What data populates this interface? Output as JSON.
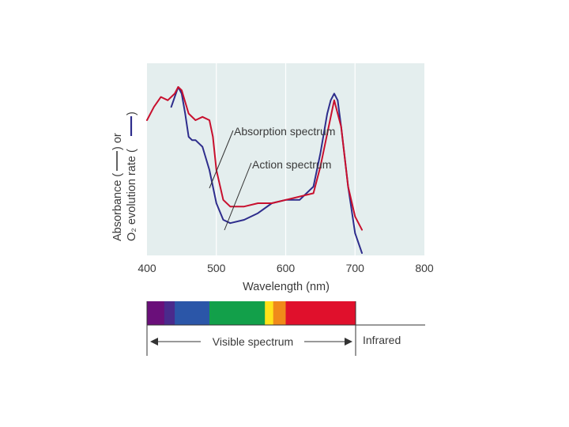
{
  "chart_data": {
    "type": "line",
    "title": "",
    "xlabel": "Wavelength (nm)",
    "ylabel_line1": "Absorbance (",
    "ylabel_line1_end": ") or",
    "ylabel_line2": "O₂ evolution rate (",
    "ylabel_line2_end": ")",
    "xlim": [
      400,
      800
    ],
    "ylim": [
      0,
      1
    ],
    "xticks": [
      "400",
      "500",
      "600",
      "700",
      "800"
    ],
    "grid": "vertical",
    "series": [
      {
        "name": "Absorption spectrum",
        "color": "#2e2d8c",
        "x": [
          435,
          440,
          445,
          450,
          455,
          460,
          465,
          470,
          480,
          490,
          500,
          510,
          520,
          540,
          560,
          580,
          600,
          620,
          640,
          650,
          660,
          665,
          670,
          675,
          680,
          690,
          700,
          710
        ],
        "y": [
          0.44,
          0.47,
          0.5,
          0.48,
          0.42,
          0.35,
          0.34,
          0.34,
          0.32,
          0.25,
          0.15,
          0.1,
          0.09,
          0.1,
          0.12,
          0.15,
          0.16,
          0.16,
          0.2,
          0.3,
          0.42,
          0.46,
          0.48,
          0.46,
          0.38,
          0.2,
          0.06,
          0.0
        ]
      },
      {
        "name": "Action spectrum",
        "color": "#c8102e",
        "x": [
          400,
          410,
          420,
          430,
          440,
          445,
          450,
          460,
          470,
          480,
          490,
          495,
          500,
          510,
          520,
          540,
          560,
          580,
          600,
          620,
          640,
          650,
          660,
          670,
          680,
          690,
          700,
          710
        ],
        "y": [
          0.4,
          0.44,
          0.47,
          0.46,
          0.48,
          0.5,
          0.49,
          0.42,
          0.4,
          0.41,
          0.4,
          0.35,
          0.25,
          0.16,
          0.14,
          0.14,
          0.15,
          0.15,
          0.16,
          0.17,
          0.18,
          0.26,
          0.36,
          0.46,
          0.38,
          0.2,
          0.11,
          0.07
        ]
      }
    ],
    "annotations": [
      "Absorption spectrum",
      "Action spectrum"
    ],
    "spectrum_bar": {
      "label": "Visible spectrum",
      "infrared_label": "Infrared",
      "bands": [
        {
          "from": 400,
          "to": 425,
          "color": "#6a0f7a"
        },
        {
          "from": 425,
          "to": 440,
          "color": "#4a2a8c"
        },
        {
          "from": 440,
          "to": 490,
          "color": "#2b56a8"
        },
        {
          "from": 490,
          "to": 570,
          "color": "#12a04a"
        },
        {
          "from": 570,
          "to": 582,
          "color": "#ffe21a"
        },
        {
          "from": 582,
          "to": 600,
          "color": "#f08a1a"
        },
        {
          "from": 600,
          "to": 700,
          "color": "#e0102c"
        }
      ]
    },
    "colors": {
      "plot_bg": "#e4eeee",
      "grid": "#ffffff"
    }
  }
}
